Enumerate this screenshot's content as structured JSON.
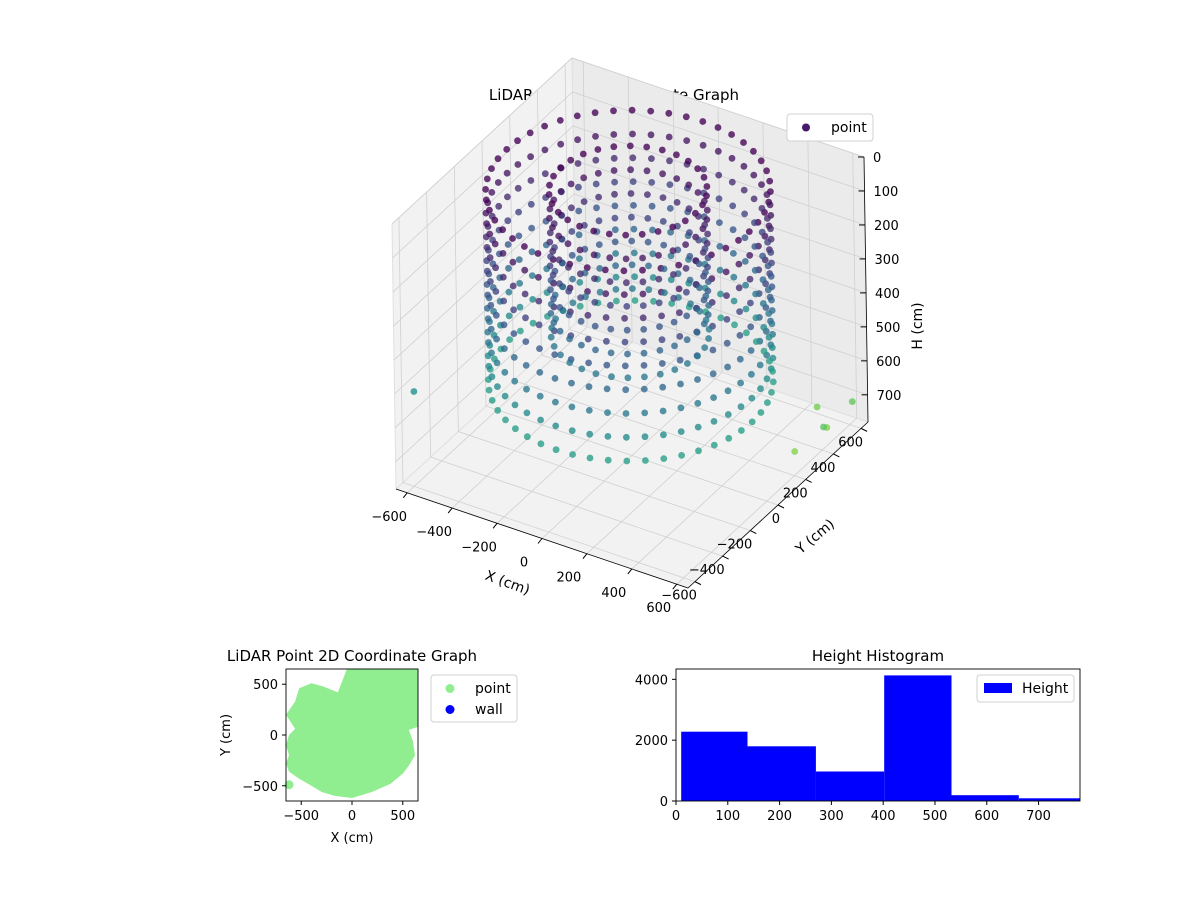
{
  "chart_data": [
    {
      "type": "scatter",
      "dimension": "3d",
      "title": "LiDAR Point 3D Coordinate Graph",
      "xlabel": "X (cm)",
      "ylabel": "Y (cm)",
      "zlabel": "H (cm)",
      "xlim": [
        -650,
        650
      ],
      "ylim": [
        -650,
        650
      ],
      "zlim": [
        0,
        780
      ],
      "z_inverted": true,
      "x_ticks": [
        "−600",
        "−400",
        "−200",
        "0",
        "200",
        "400",
        "600"
      ],
      "y_ticks": [
        "−600",
        "−400",
        "−200",
        "0",
        "200",
        "400",
        "600"
      ],
      "z_ticks": [
        "0",
        "100",
        "200",
        "300",
        "400",
        "500",
        "600",
        "700"
      ],
      "colormap": "viridis",
      "grid": true,
      "legend": {
        "placement": "top-right",
        "entries": [
          {
            "label": "point",
            "color": "#46196a"
          }
        ]
      },
      "series": [
        {
          "name": "point",
          "description_of_shape": "ring of vertical stripes",
          "rings": [
            {
              "radius": 540,
              "h_top": 0,
              "h_bottom": 560,
              "n_azimuth": 48
            },
            {
              "radius": 300,
              "h_top": 0,
              "h_bottom": 470,
              "n_azimuth": 30
            }
          ],
          "outliers": [
            {
              "x": -620,
              "y": -560,
              "h": 520
            },
            {
              "x": 560,
              "y": 500,
              "h": 760
            },
            {
              "x": 600,
              "y": 620,
              "h": 720
            },
            {
              "x": 620,
              "y": 380,
              "h": 700
            },
            {
              "x": 480,
              "y": 560,
              "h": 740
            },
            {
              "x": 540,
              "y": 300,
              "h": 760
            }
          ]
        }
      ]
    },
    {
      "type": "scatter",
      "dimension": "2d",
      "title": "LiDAR Point 2D Coordinate Graph",
      "xlabel": "X (cm)",
      "ylabel": "Y (cm)",
      "xlim": [
        -650,
        650
      ],
      "ylim": [
        -650,
        650
      ],
      "x_ticks": [
        "−500",
        "0",
        "500"
      ],
      "y_ticks": [
        "−500",
        "0",
        "500"
      ],
      "legend": {
        "placement": "outside-right",
        "entries": [
          {
            "label": "point",
            "color": "#90ee90"
          },
          {
            "label": "wall",
            "color": "#0000ff"
          }
        ]
      },
      "point_cloud_outline": [
        [
          -50,
          650
        ],
        [
          650,
          650
        ],
        [
          650,
          80
        ],
        [
          560,
          50
        ],
        [
          600,
          -60
        ],
        [
          620,
          -200
        ],
        [
          560,
          -300
        ],
        [
          500,
          -380
        ],
        [
          380,
          -480
        ],
        [
          200,
          -560
        ],
        [
          0,
          -620
        ],
        [
          -170,
          -600
        ],
        [
          -300,
          -560
        ],
        [
          -400,
          -500
        ],
        [
          -520,
          -430
        ],
        [
          -620,
          -360
        ],
        [
          -650,
          -280
        ],
        [
          -620,
          -200
        ],
        [
          -650,
          -100
        ],
        [
          -620,
          0
        ],
        [
          -560,
          60
        ],
        [
          -650,
          200
        ],
        [
          -560,
          330
        ],
        [
          -520,
          460
        ],
        [
          -400,
          510
        ],
        [
          -290,
          480
        ],
        [
          -140,
          420
        ],
        [
          -100,
          520
        ],
        [
          -50,
          650
        ]
      ],
      "stray_points": [
        {
          "x": -620,
          "y": -490
        }
      ]
    },
    {
      "type": "bar",
      "subtype": "histogram",
      "title": "Height Histogram",
      "xlim": [
        0,
        780
      ],
      "ylim": [
        0,
        4340
      ],
      "x_ticks": [
        "0",
        "100",
        "200",
        "300",
        "400",
        "500",
        "600",
        "700"
      ],
      "y_ticks": [
        "0",
        "2000",
        "4000"
      ],
      "color": "#0000ff",
      "legend": {
        "placement": "top-right",
        "entries": [
          {
            "label": "Height",
            "color": "#0000ff"
          }
        ]
      },
      "series": [
        {
          "name": "Height",
          "bins": [
            {
              "start": 10,
              "end": 138,
              "count": 2280
            },
            {
              "start": 138,
              "end": 270,
              "count": 1800
            },
            {
              "start": 270,
              "end": 402,
              "count": 970
            },
            {
              "start": 402,
              "end": 532,
              "count": 4130
            },
            {
              "start": 532,
              "end": 662,
              "count": 190
            },
            {
              "start": 662,
              "end": 790,
              "count": 90
            }
          ]
        }
      ]
    }
  ]
}
